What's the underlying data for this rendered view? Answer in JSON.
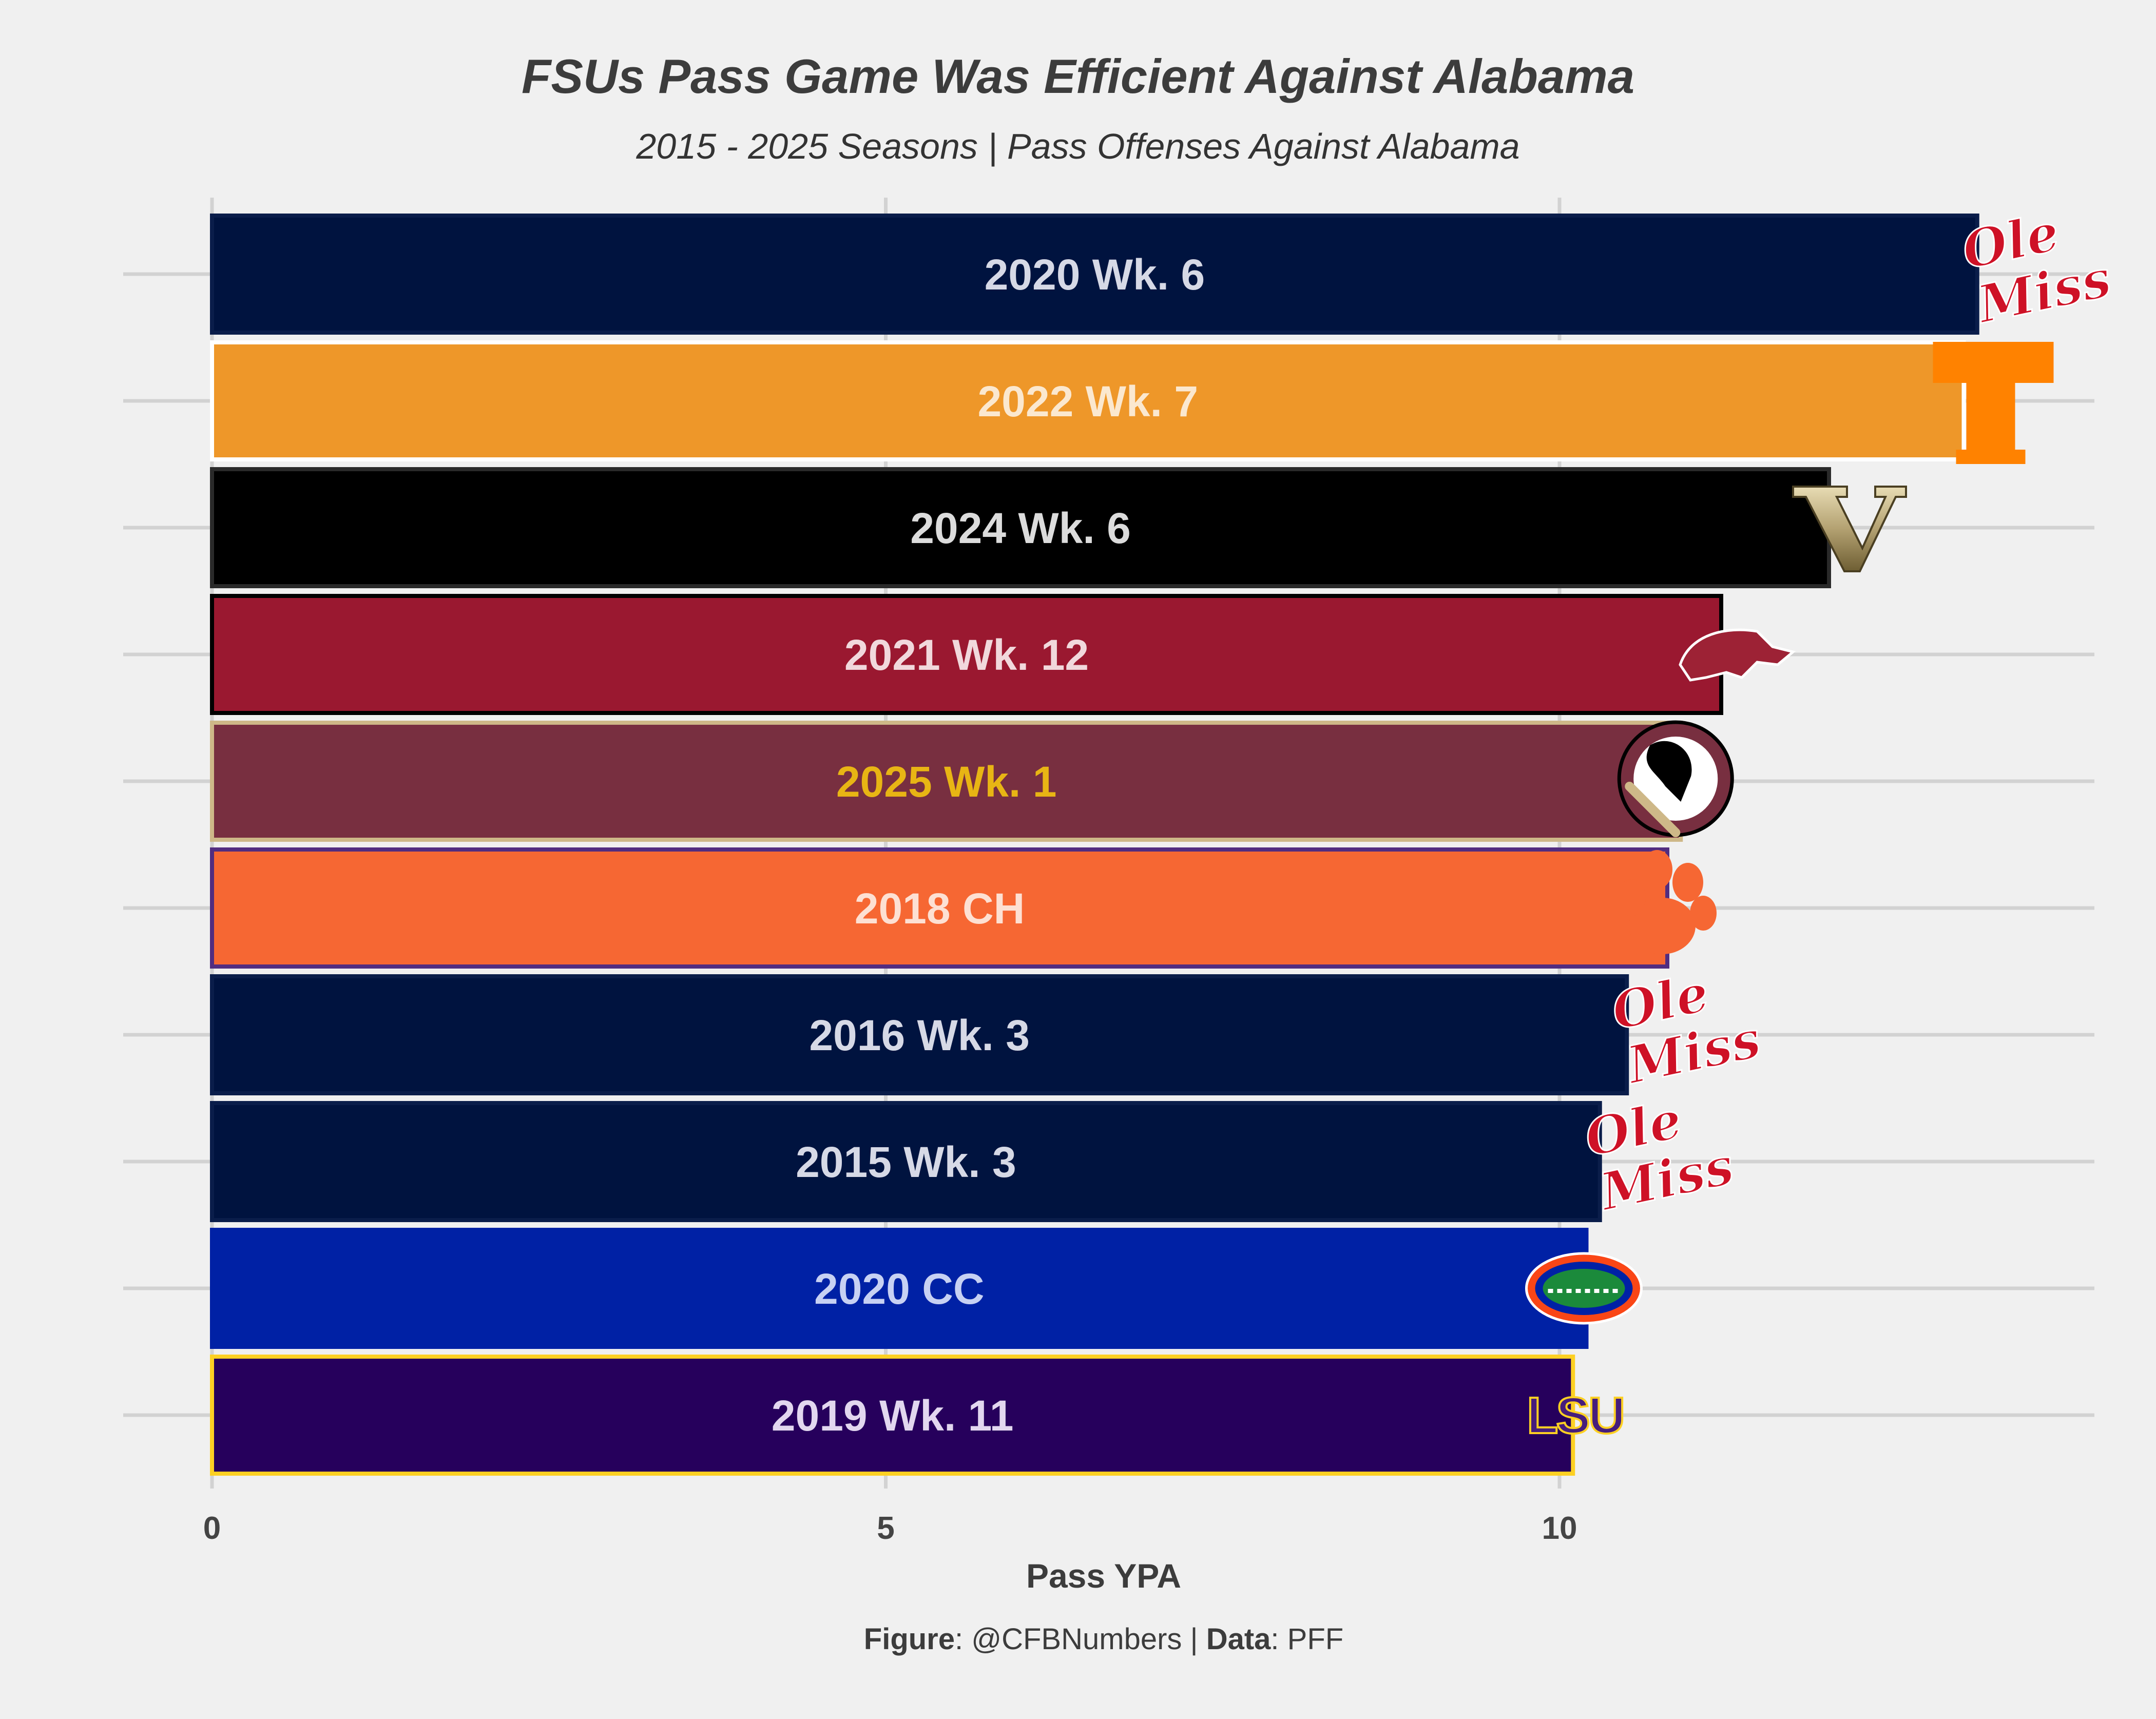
{
  "chart_data": {
    "type": "bar",
    "orientation": "horizontal",
    "title": "FSUs Pass Game Was Efficient Against Alabama",
    "subtitle": "2015 - 2025 Seasons | Pass Offenses Against Alabama",
    "xlabel": "Pass YPA",
    "ylabel": "",
    "xlim": [
      0,
      13.9
    ],
    "xticks": [
      0,
      5,
      10
    ],
    "grid": true,
    "bars": [
      {
        "label": "2020 Wk. 6",
        "value": 13.1,
        "team": "Ole Miss",
        "fill": "#00133f",
        "outline": "#0a1d4a",
        "text_color": "#d6d9e6",
        "logo": "ole-miss-logo"
      },
      {
        "label": "2022 Wk. 7",
        "value": 13.0,
        "team": "Tennessee",
        "fill": "#ee9729",
        "outline": "#ffffff",
        "text_color": "#fbe8cf",
        "logo": "tennessee-logo"
      },
      {
        "label": "2024 Wk. 6",
        "value": 12.0,
        "team": "Vanderbilt",
        "fill": "#000000",
        "outline": "#2a2a2a",
        "text_color": "#dcdcdc",
        "logo": "vanderbilt-logo"
      },
      {
        "label": "2021 Wk. 12",
        "value": 11.2,
        "team": "Arkansas",
        "fill": "#9a1830",
        "outline": "#000000",
        "text_color": "#f1d8dc",
        "logo": "arkansas-logo"
      },
      {
        "label": "2025 Wk. 1",
        "value": 10.9,
        "team": "Florida State",
        "fill": "#782f40",
        "outline": "#ceb888",
        "text_color": "#e8b514",
        "logo": "florida-state-logo"
      },
      {
        "label": "2018 CH",
        "value": 10.8,
        "team": "Clemson",
        "fill": "#f66733",
        "outline": "#522d80",
        "text_color": "#fde0d3",
        "logo": "clemson-logo"
      },
      {
        "label": "2016 Wk. 3",
        "value": 10.5,
        "team": "Ole Miss",
        "fill": "#00133f",
        "outline": "#0a1d4a",
        "text_color": "#d6d9e6",
        "logo": "ole-miss-logo"
      },
      {
        "label": "2015 Wk. 3",
        "value": 10.3,
        "team": "Ole Miss",
        "fill": "#00133f",
        "outline": "#0a1d4a",
        "text_color": "#d6d9e6",
        "logo": "ole-miss-logo"
      },
      {
        "label": "2020 CC",
        "value": 10.2,
        "team": "Florida",
        "fill": "#0021a5",
        "outline": "#0021a5",
        "text_color": "#c7d1f3",
        "logo": "florida-logo"
      },
      {
        "label": "2019 Wk. 11",
        "value": 10.1,
        "team": "LSU",
        "fill": "#26005c",
        "outline": "#fdd023",
        "text_color": "#e2d7ef",
        "logo": "lsu-logo"
      }
    ]
  },
  "caption": {
    "figure_key": "Figure",
    "figure_value": ": @CFBNumbers | ",
    "data_key": "Data",
    "data_value": ": PFF"
  },
  "logos": {
    "ole_miss_line1": "Ole",
    "ole_miss_line2": "Miss",
    "vanderbilt_letter": "V",
    "lsu_text": "LSU"
  },
  "colors": {
    "background": "#f0f0f0",
    "gridline": "#d2d2d2",
    "ole_miss_red": "#ce1126",
    "tennessee_orange": "#ff8200",
    "vanderbilt_gold": "#a8996e",
    "lsu_purple": "#461d7c",
    "florida_orange": "#fa4616",
    "florida_green": "#1b8a3b"
  }
}
